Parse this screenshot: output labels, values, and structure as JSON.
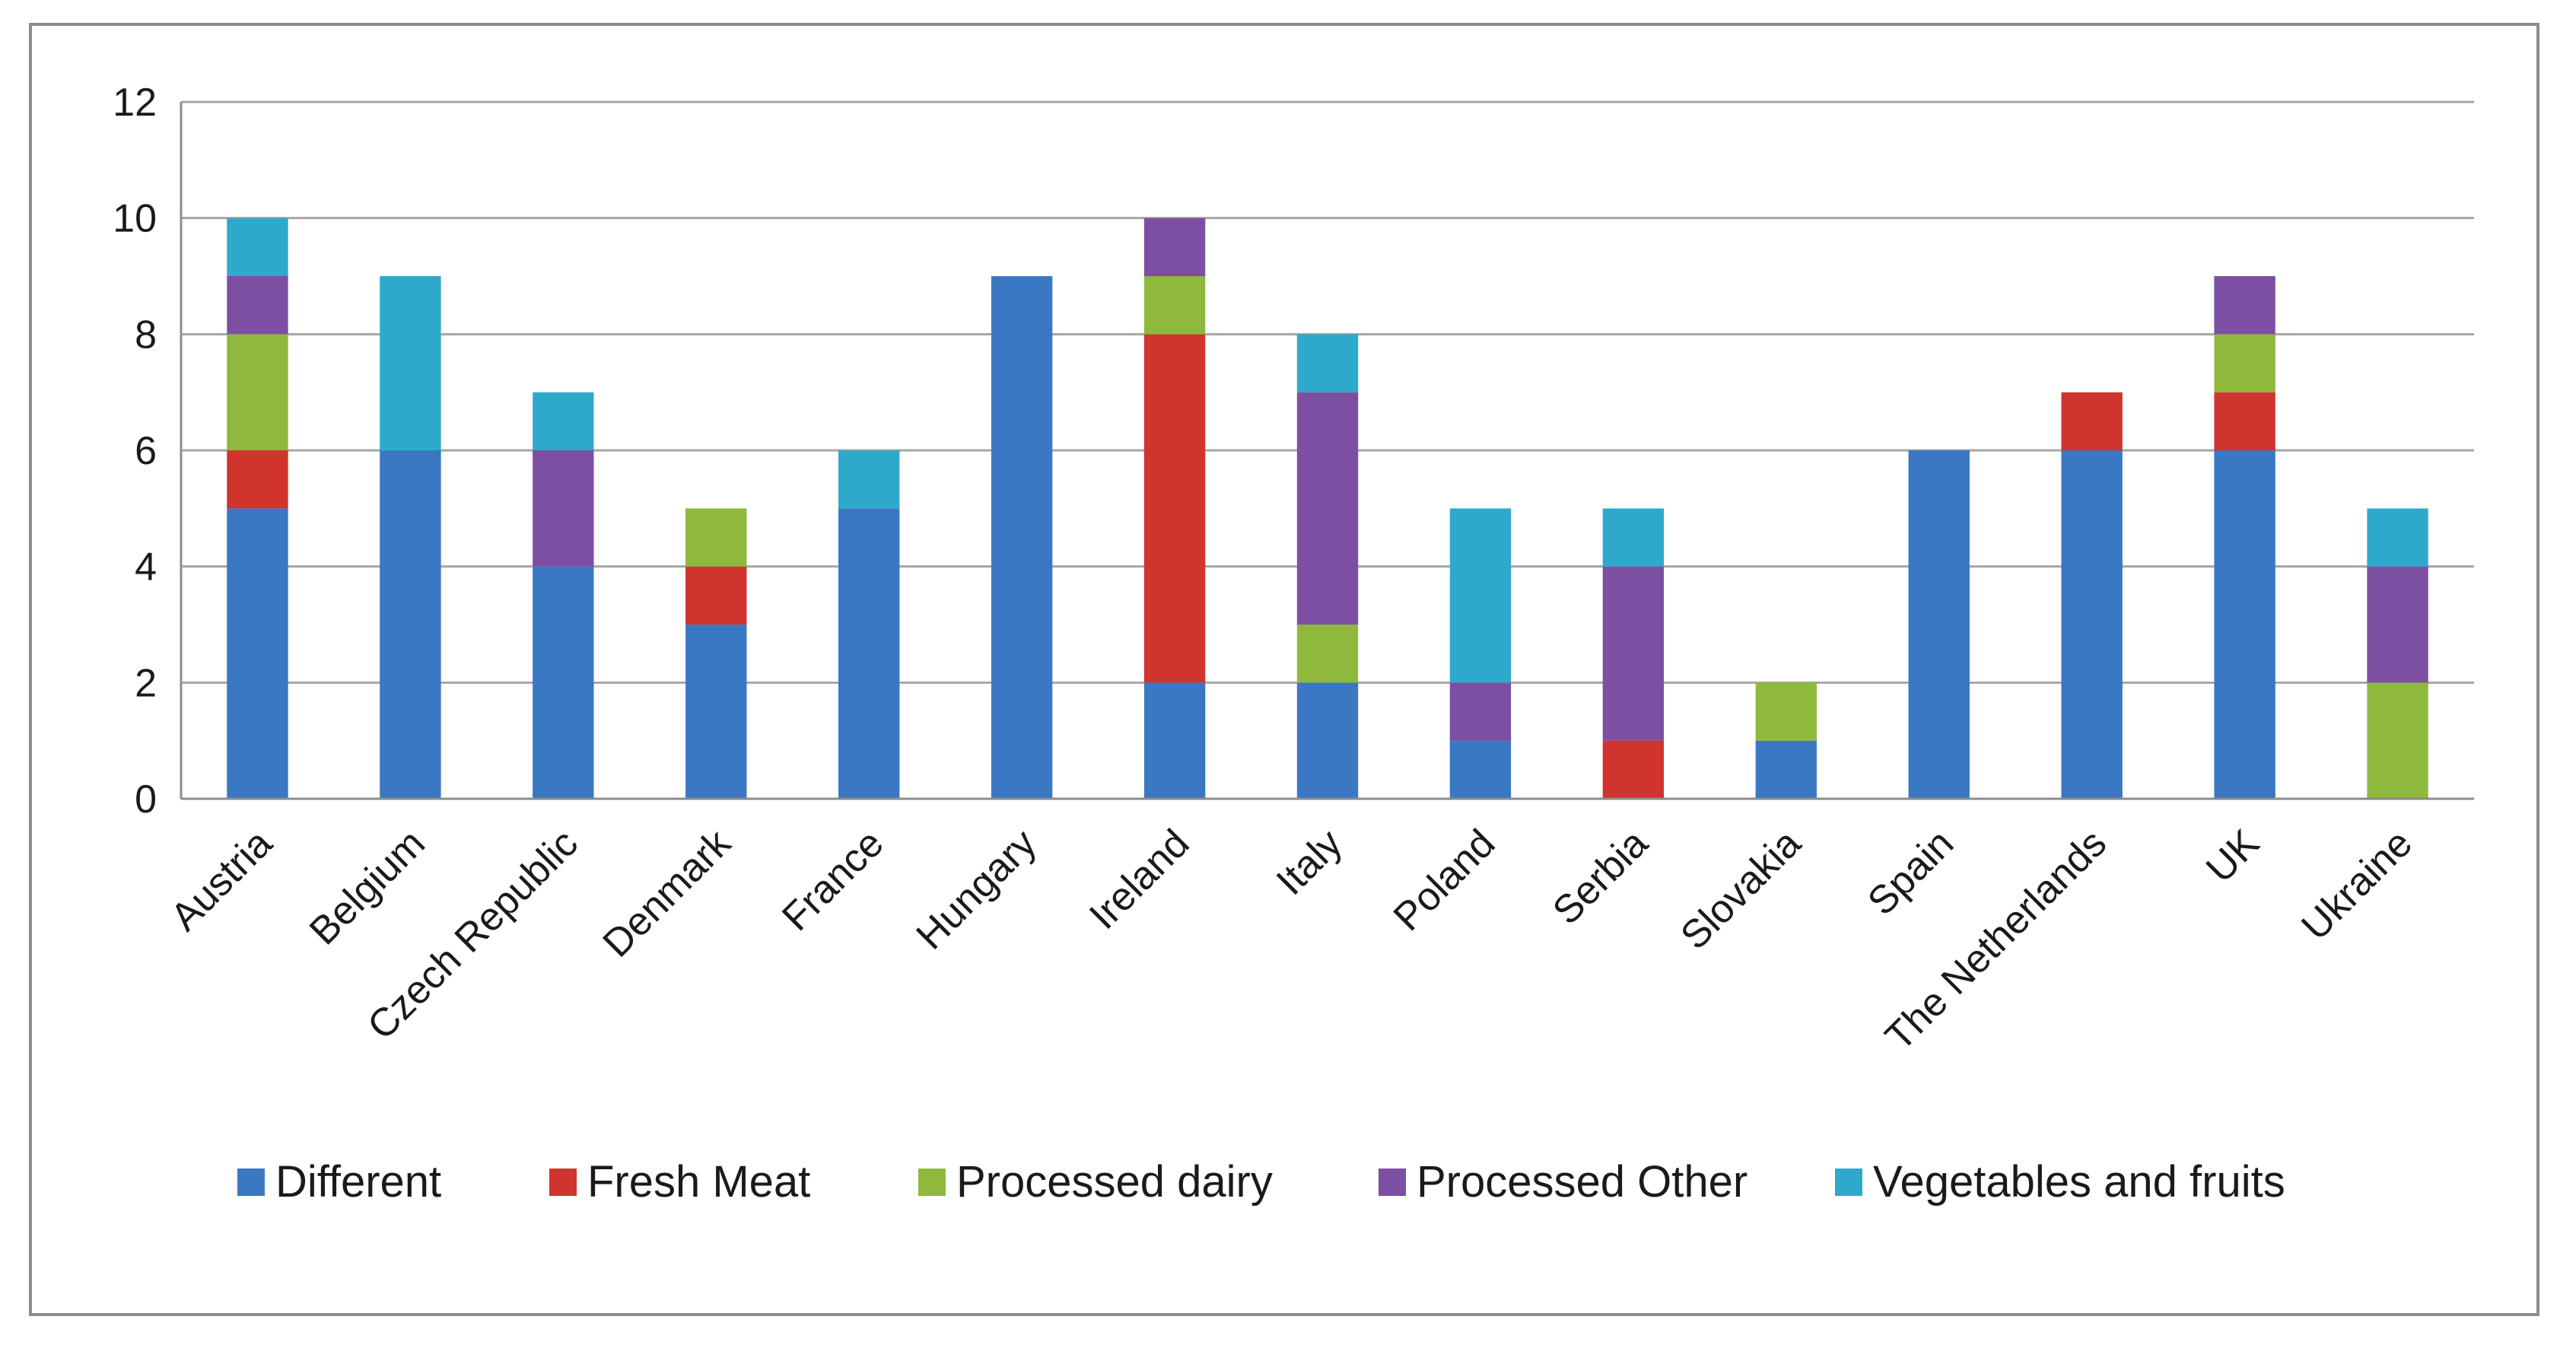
{
  "chart_data": {
    "type": "bar",
    "stacked": true,
    "title": "",
    "xlabel": "",
    "ylabel": "",
    "ylim": [
      0,
      12
    ],
    "yticks": [
      0,
      2,
      4,
      6,
      8,
      10,
      12
    ],
    "grid": true,
    "legend_position": "bottom",
    "categories": [
      "Austria",
      "Belgium",
      "Czech Republic",
      "Denmark",
      "France",
      "Hungary",
      "Ireland",
      "Italy",
      "Poland",
      "Serbia",
      "Slovakia",
      "Spain",
      "The Netherlands",
      "UK",
      "Ukraine"
    ],
    "series": [
      {
        "name": "Different",
        "color": "#3a78c4",
        "values": [
          5,
          6,
          4,
          3,
          5,
          9,
          2,
          2,
          1,
          0,
          1,
          6,
          6,
          6,
          0
        ]
      },
      {
        "name": "Fresh Meat",
        "color": "#d0342f",
        "values": [
          1,
          0,
          0,
          1,
          0,
          0,
          6,
          0,
          0,
          1,
          0,
          0,
          1,
          1,
          0
        ]
      },
      {
        "name": "Processed dairy",
        "color": "#8fb93c",
        "values": [
          2,
          0,
          0,
          1,
          0,
          0,
          1,
          1,
          0,
          0,
          1,
          0,
          0,
          1,
          2
        ]
      },
      {
        "name": "Processed Other",
        "color": "#7d4fa3",
        "values": [
          1,
          0,
          2,
          0,
          0,
          0,
          1,
          4,
          1,
          3,
          0,
          0,
          0,
          1,
          2
        ]
      },
      {
        "name": "Vegetables and fruits",
        "color": "#2fa9cb",
        "values": [
          1,
          3,
          1,
          0,
          1,
          0,
          0,
          1,
          3,
          1,
          0,
          0,
          0,
          0,
          1
        ]
      }
    ]
  }
}
